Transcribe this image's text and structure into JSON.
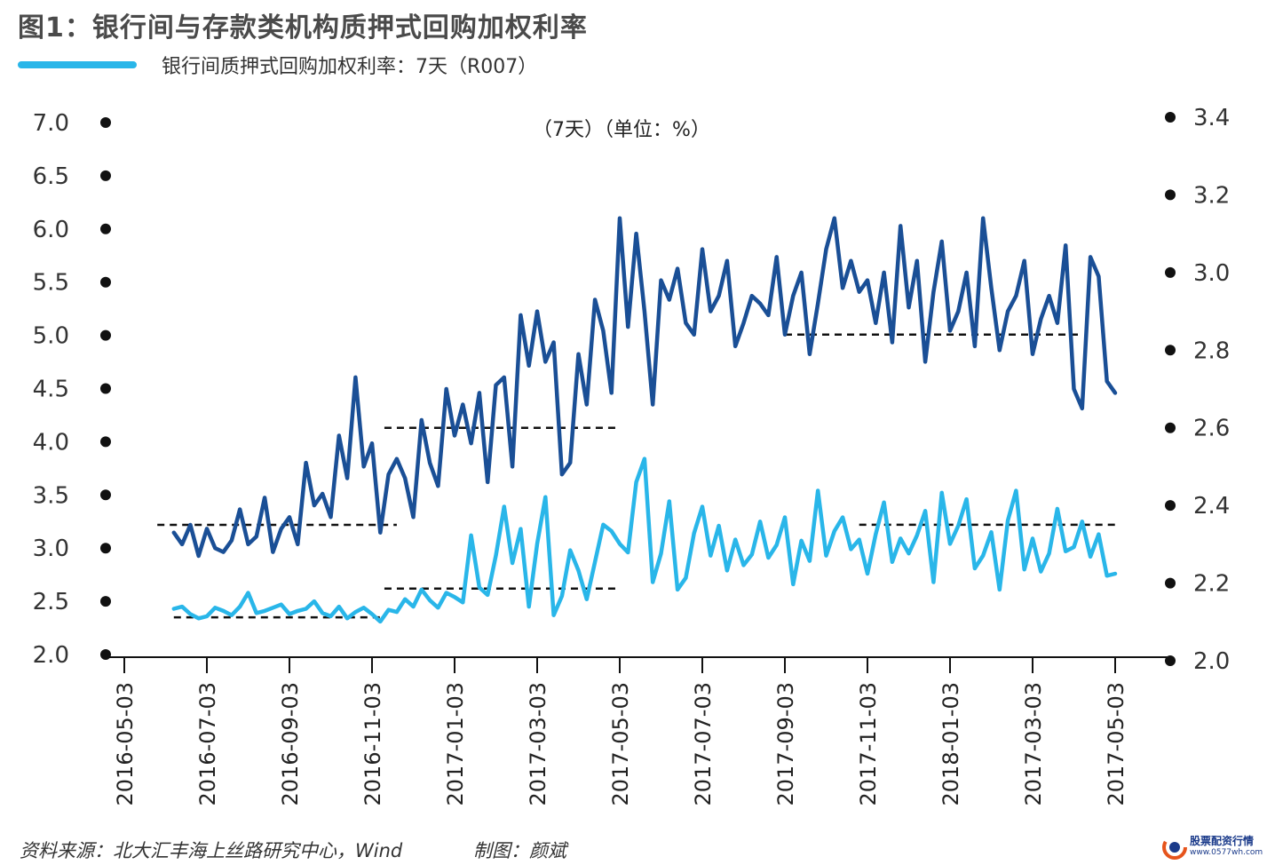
{
  "title": "图1：银行间与存款类机构质押式回购加权利率",
  "legend": {
    "label": "银行间质押式回购加权利率：7天（R007）",
    "color": "#29b6e9"
  },
  "annotation": "（7天）（单位：%）",
  "footer": {
    "source": "资料来源：北大汇丰海上丝路研究中心，Wind",
    "maker": "制图：颜斌"
  },
  "watermark": {
    "name": "股票配资行情",
    "url": "www.0577wh.com"
  },
  "chart_data": {
    "type": "line",
    "x_ticks": [
      "2016-05-03",
      "2016-07-03",
      "2016-09-03",
      "2016-11-03",
      "2017-01-03",
      "2017-03-03",
      "2017-05-03",
      "2017-07-03",
      "2017-09-03",
      "2017-11-03",
      "2018-01-03",
      "2017-03-03",
      "2017-05-03"
    ],
    "y_left": {
      "ticks": [
        "2.0",
        "2.5",
        "3.0",
        "3.5",
        "4.0",
        "4.5",
        "5.0",
        "5.5",
        "6.0",
        "6.5",
        "7.0"
      ],
      "min": 2.0,
      "max": 7.0
    },
    "y_right": {
      "ticks": [
        "2.0",
        "2.2",
        "2.4",
        "2.6",
        "2.8",
        "3.0",
        "3.2",
        "3.4"
      ],
      "min": 2.0,
      "max": 3.4
    },
    "grid": false,
    "legend_position": "top-left",
    "series": [
      {
        "name": "银行间质押式回购加权利率：7天（R007）",
        "axis": "left",
        "color": "#29b6e9",
        "x": [
          0.6,
          0.7,
          0.8,
          0.9,
          1.0,
          1.1,
          1.2,
          1.3,
          1.4,
          1.5,
          1.6,
          1.7,
          1.8,
          1.9,
          2.0,
          2.1,
          2.2,
          2.3,
          2.4,
          2.5,
          2.6,
          2.7,
          2.8,
          2.9,
          3.0,
          3.1,
          3.2,
          3.3,
          3.4,
          3.5,
          3.6,
          3.7,
          3.8,
          3.9,
          4.0,
          4.1,
          4.2,
          4.3,
          4.4,
          4.5,
          4.6,
          4.7,
          4.8,
          4.9,
          5.0,
          5.1,
          5.2,
          5.3,
          5.4,
          5.5,
          5.6,
          5.7,
          5.8,
          5.9,
          6.0,
          6.1,
          6.2,
          6.3,
          6.4,
          6.5,
          6.6,
          6.7,
          6.8,
          6.9,
          7.0,
          7.1,
          7.2,
          7.3,
          7.4,
          7.5,
          7.6,
          7.7,
          7.8,
          7.9,
          8.0,
          8.1,
          8.2,
          8.3,
          8.4,
          8.5,
          8.6,
          8.7,
          8.8,
          8.9,
          9.0,
          9.1,
          9.2,
          9.3,
          9.4,
          9.5,
          9.6,
          9.7,
          9.8,
          9.9,
          10.0,
          10.1,
          10.2,
          10.3,
          10.4,
          10.5,
          10.6,
          10.7,
          10.8,
          10.9,
          11.0,
          11.1,
          11.2,
          11.3,
          11.4,
          11.5,
          11.6,
          11.7,
          11.8,
          11.9,
          12.0
        ],
        "y": [
          2.43,
          2.45,
          2.38,
          2.34,
          2.36,
          2.44,
          2.41,
          2.37,
          2.45,
          2.58,
          2.39,
          2.41,
          2.44,
          2.47,
          2.38,
          2.41,
          2.43,
          2.5,
          2.39,
          2.36,
          2.45,
          2.34,
          2.4,
          2.44,
          2.38,
          2.31,
          2.42,
          2.4,
          2.52,
          2.45,
          2.61,
          2.51,
          2.44,
          2.58,
          2.54,
          2.49,
          3.12,
          2.63,
          2.56,
          2.93,
          3.39,
          2.86,
          3.18,
          2.45,
          3.04,
          3.48,
          2.37,
          2.55,
          2.98,
          2.79,
          2.52,
          2.87,
          3.22,
          3.16,
          3.04,
          2.96,
          3.62,
          3.84,
          2.68,
          2.95,
          3.44,
          2.61,
          2.72,
          3.14,
          3.39,
          2.93,
          3.21,
          2.79,
          3.08,
          2.84,
          2.94,
          3.25,
          2.91,
          3.03,
          3.29,
          2.66,
          3.07,
          2.88,
          3.54,
          2.93,
          3.16,
          3.29,
          2.99,
          3.08,
          2.76,
          3.13,
          3.43,
          2.87,
          3.09,
          2.95,
          3.12,
          3.35,
          2.68,
          3.52,
          3.04,
          3.21,
          3.46,
          2.81,
          2.93,
          3.15,
          2.61,
          3.26,
          3.54,
          2.8,
          3.09,
          2.78,
          2.95,
          3.37,
          2.97,
          3.01,
          3.25,
          2.92,
          3.13,
          2.74,
          2.76
        ]
      },
      {
        "name": "",
        "axis": "right",
        "color": "#1a4f96",
        "x": [
          0.6,
          0.7,
          0.8,
          0.9,
          1.0,
          1.1,
          1.2,
          1.3,
          1.4,
          1.5,
          1.6,
          1.7,
          1.8,
          1.9,
          2.0,
          2.1,
          2.2,
          2.3,
          2.4,
          2.5,
          2.6,
          2.7,
          2.8,
          2.9,
          3.0,
          3.1,
          3.2,
          3.3,
          3.4,
          3.5,
          3.6,
          3.7,
          3.8,
          3.9,
          4.0,
          4.1,
          4.2,
          4.3,
          4.4,
          4.5,
          4.6,
          4.7,
          4.8,
          4.9,
          5.0,
          5.1,
          5.2,
          5.3,
          5.4,
          5.5,
          5.6,
          5.7,
          5.8,
          5.9,
          6.0,
          6.1,
          6.2,
          6.3,
          6.4,
          6.5,
          6.6,
          6.7,
          6.8,
          6.9,
          7.0,
          7.1,
          7.2,
          7.3,
          7.4,
          7.5,
          7.6,
          7.7,
          7.8,
          7.9,
          8.0,
          8.1,
          8.2,
          8.3,
          8.4,
          8.5,
          8.6,
          8.7,
          8.8,
          8.9,
          9.0,
          9.1,
          9.2,
          9.3,
          9.4,
          9.5,
          9.6,
          9.7,
          9.8,
          9.9,
          10.0,
          10.1,
          10.2,
          10.3,
          10.4,
          10.5,
          10.6,
          10.7,
          10.8,
          10.9,
          11.0,
          11.1,
          11.2,
          11.3,
          11.4,
          11.5,
          11.6,
          11.7,
          11.8,
          11.9,
          12.0
        ],
        "y": [
          2.33,
          2.3,
          2.35,
          2.27,
          2.34,
          2.29,
          2.28,
          2.31,
          2.39,
          2.3,
          2.32,
          2.42,
          2.28,
          2.34,
          2.37,
          2.3,
          2.51,
          2.4,
          2.43,
          2.37,
          2.58,
          2.47,
          2.73,
          2.5,
          2.56,
          2.33,
          2.48,
          2.52,
          2.47,
          2.37,
          2.62,
          2.51,
          2.45,
          2.7,
          2.58,
          2.66,
          2.56,
          2.69,
          2.46,
          2.71,
          2.73,
          2.5,
          2.89,
          2.76,
          2.9,
          2.77,
          2.82,
          2.48,
          2.51,
          2.79,
          2.66,
          2.93,
          2.85,
          2.69,
          3.14,
          2.86,
          3.1,
          2.9,
          2.66,
          2.98,
          2.93,
          3.01,
          2.87,
          2.84,
          3.06,
          2.9,
          2.94,
          3.03,
          2.81,
          2.87,
          2.94,
          2.92,
          2.89,
          3.04,
          2.84,
          2.94,
          3.0,
          2.79,
          2.92,
          3.06,
          3.14,
          2.96,
          3.03,
          2.95,
          2.98,
          2.87,
          3.0,
          2.82,
          3.12,
          2.91,
          3.03,
          2.77,
          2.95,
          3.08,
          2.85,
          2.9,
          3.0,
          2.81,
          3.14,
          2.96,
          2.8,
          2.9,
          2.94,
          3.03,
          2.79,
          2.88,
          2.94,
          2.87,
          3.07,
          2.7,
          2.65,
          3.04,
          2.99,
          2.72,
          2.69
        ]
      }
    ],
    "reference_lines": [
      {
        "axis": "left",
        "y": 2.35,
        "x_from": 0.6,
        "x_to": 3.15
      },
      {
        "axis": "left",
        "y": 2.62,
        "x_from": 3.15,
        "x_to": 6.0
      },
      {
        "axis": "left",
        "y": 3.22,
        "x_from": 8.9,
        "x_to": 12.0
      },
      {
        "axis": "right",
        "y": 2.35,
        "x_from": 0.4,
        "x_to": 3.3
      },
      {
        "axis": "right",
        "y": 2.6,
        "x_from": 3.15,
        "x_to": 5.95
      },
      {
        "axis": "right",
        "y": 2.84,
        "x_from": 8.0,
        "x_to": 11.6
      }
    ]
  }
}
